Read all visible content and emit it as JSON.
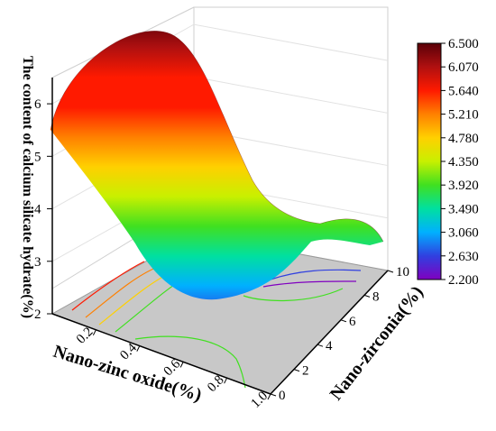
{
  "chart_data": {
    "type": "surface3d",
    "title": "",
    "xlabel": "Nano-zinc oxide(%)",
    "ylabel": "Nano-zirconia(%)",
    "zlabel": "The content of calcium silicate hydrate(%)",
    "xlim": [
      0,
      1.0
    ],
    "ylim": [
      0,
      10
    ],
    "zlim": [
      2,
      6.5
    ],
    "x_ticks": [
      "0.2",
      "0.4",
      "0.6",
      "0.8",
      "1.0"
    ],
    "y_ticks": [
      "0",
      "2",
      "4",
      "6",
      "8",
      "10"
    ],
    "z_ticks": [
      "2",
      "3",
      "4",
      "5",
      "6"
    ],
    "colorbar": {
      "min": 2.2,
      "max": 6.5,
      "labels": [
        "6.500",
        "6.070",
        "5.640",
        "5.210",
        "4.780",
        "4.350",
        "3.920",
        "3.490",
        "3.060",
        "2.630",
        "2.200"
      ],
      "colors": [
        "#5a0008",
        "#b01010",
        "#ff1a00",
        "#ff8000",
        "#ffd000",
        "#c8f000",
        "#40e020",
        "#00e0a0",
        "#00b0ff",
        "#3040e0",
        "#8000c0"
      ]
    },
    "series": [
      {
        "grid_x": [
          0,
          0.2,
          0.4,
          0.6,
          0.8,
          1.0
        ],
        "grid_y": [
          0,
          2,
          4,
          6,
          8,
          10
        ],
        "z": [
          [
            5.6,
            5.8,
            6.0,
            6.2,
            6.4,
            6.5
          ],
          [
            4.8,
            5.0,
            5.2,
            5.4,
            5.6,
            5.7
          ],
          [
            4.0,
            4.2,
            4.4,
            4.6,
            4.8,
            4.9
          ],
          [
            3.2,
            3.3,
            3.5,
            3.7,
            3.9,
            4.0
          ],
          [
            2.8,
            2.9,
            3.0,
            3.2,
            3.4,
            3.5
          ],
          [
            3.0,
            3.0,
            3.1,
            3.2,
            3.3,
            3.4
          ]
        ]
      }
    ],
    "contour_floor": true,
    "grid": true
  }
}
